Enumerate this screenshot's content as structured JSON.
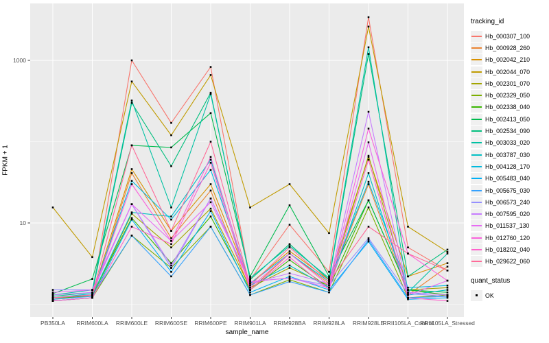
{
  "chart_data": {
    "type": "line",
    "title": "",
    "xlabel": "sample_name",
    "ylabel": "FPKM + 1",
    "y_scale": "log10",
    "y_ticks": [
      10,
      1000
    ],
    "y_minor": [
      1,
      100
    ],
    "ylim_log10": [
      -0.16,
      3.7
    ],
    "grid": "on",
    "legend_position": "right",
    "legend": {
      "series_title": "tracking_id",
      "status_title": "quant_status",
      "status_label": "OK"
    },
    "colors": {
      "panel_bg": "#EBEBEB",
      "grid": "#FFFFFF",
      "tick_label": "#4D4D4D",
      "tick_mark": "#333333",
      "point": "#000000",
      "legend_key_bg": "#F0F0F0"
    },
    "categories": [
      "PB350LA",
      "RRIM600LA",
      "RRIM600LE",
      "RRIM600SE",
      "RRIM600PE",
      "RRIM901LA",
      "RRIM928BA",
      "RRIM928LA",
      "RRIM928LE",
      "RRII105LA_Control",
      "RRII105LA_Stressed"
    ],
    "series": [
      {
        "name": "Hb_000307_100",
        "color": "#F8766D",
        "values": [
          1.2,
          1.3,
          1000,
          170,
          830,
          2.0,
          9.5,
          2.5,
          3400,
          5.0,
          2.6
        ]
      },
      {
        "name": "Hb_000928_260",
        "color": "#EA8331",
        "values": [
          1.1,
          1.2,
          41,
          6.5,
          25,
          1.5,
          4.2,
          1.8,
          30,
          1.3,
          2.9
        ]
      },
      {
        "name": "Hb_002042_210",
        "color": "#D89000",
        "values": [
          1.15,
          1.3,
          46,
          8,
          30,
          1.8,
          4.5,
          2.0,
          65,
          2.2,
          3.2
        ]
      },
      {
        "name": "Hb_002044_070",
        "color": "#C09B00",
        "values": [
          15.5,
          3.8,
          550,
          120,
          660,
          15.5,
          30,
          7.5,
          2600,
          9.0,
          4.4
        ]
      },
      {
        "name": "Hb_002301_070",
        "color": "#A3A500",
        "values": [
          1.2,
          1.25,
          13,
          5,
          15,
          1.6,
          2.8,
          1.7,
          67,
          1.5,
          1.6
        ]
      },
      {
        "name": "Hb_002329_050",
        "color": "#7CAE00",
        "values": [
          1.1,
          1.2,
          7,
          2.8,
          9,
          1.3,
          2.0,
          1.4,
          15.5,
          1.2,
          1.3
        ]
      },
      {
        "name": "Hb_002338_040",
        "color": "#39B600",
        "values": [
          1.15,
          1.3,
          11.5,
          3.2,
          12,
          1.5,
          3.5,
          1.6,
          19,
          1.5,
          1.3
        ]
      },
      {
        "name": "Hb_002413_050",
        "color": "#00BB4E",
        "values": [
          1.35,
          2.05,
          90,
          85,
          225,
          2.2,
          16.5,
          2.2,
          19,
          1.5,
          1.4
        ]
      },
      {
        "name": "Hb_002534_090",
        "color": "#00BF7D",
        "values": [
          1.25,
          1.4,
          300,
          50,
          400,
          2.0,
          5.5,
          2.0,
          1200,
          2.2,
          4.7
        ]
      },
      {
        "name": "Hb_003033_020",
        "color": "#00C1A3",
        "values": [
          1.3,
          1.5,
          320,
          15.5,
          385,
          2.1,
          5.2,
          2.1,
          1450,
          1.4,
          4.2
        ]
      },
      {
        "name": "Hb_003787_030",
        "color": "#00BFC4",
        "values": [
          1.2,
          1.3,
          13.5,
          12,
          60,
          1.7,
          3.0,
          1.6,
          41,
          1.3,
          1.5
        ]
      },
      {
        "name": "Hb_004128_170",
        "color": "#00BADE",
        "values": [
          1.2,
          1.35,
          33,
          11,
          45,
          1.8,
          4.2,
          1.9,
          32,
          1.6,
          1.7
        ]
      },
      {
        "name": "Hb_005483_040",
        "color": "#00B0F6",
        "values": [
          1.1,
          1.2,
          11,
          2.5,
          14,
          1.4,
          2.2,
          1.5,
          5.9,
          1.15,
          1.2
        ]
      },
      {
        "name": "Hb_005675_030",
        "color": "#35A2FF",
        "values": [
          1.15,
          1.25,
          7,
          2.2,
          9,
          1.3,
          1.9,
          1.4,
          6.2,
          1.2,
          1.25
        ]
      },
      {
        "name": "Hb_006573_240",
        "color": "#9590FF",
        "values": [
          1.5,
          1.5,
          17,
          2.8,
          20,
          1.9,
          2.1,
          1.7,
          6.5,
          1.35,
          1.25
        ]
      },
      {
        "name": "Hb_007595_020",
        "color": "#C77CFF",
        "values": [
          1.3,
          1.4,
          17,
          3.0,
          20,
          1.8,
          2.4,
          1.8,
          233,
          1.4,
          1.3
        ]
      },
      {
        "name": "Hb_011537_130",
        "color": "#E76BF3",
        "values": [
          1.4,
          1.5,
          17,
          6,
          18,
          1.9,
          2.1,
          1.6,
          98,
          1.3,
          1.95
        ]
      },
      {
        "name": "Hb_012760_120",
        "color": "#FA62DB",
        "values": [
          1.2,
          1.3,
          30,
          6,
          65,
          1.6,
          4.2,
          1.7,
          145,
          4.2,
          1.95
        ]
      },
      {
        "name": "Hb_018202_040",
        "color": "#FF61CC",
        "values": [
          1.1,
          1.2,
          9,
          5.5,
          55,
          1.5,
          3.8,
          1.5,
          60,
          1.2,
          1.1
        ]
      },
      {
        "name": "Hb_029622_060",
        "color": "#FF6A98",
        "values": [
          1.2,
          1.3,
          90,
          8,
          100,
          1.7,
          5.0,
          1.9,
          9,
          4.2,
          2.6
        ]
      }
    ]
  }
}
